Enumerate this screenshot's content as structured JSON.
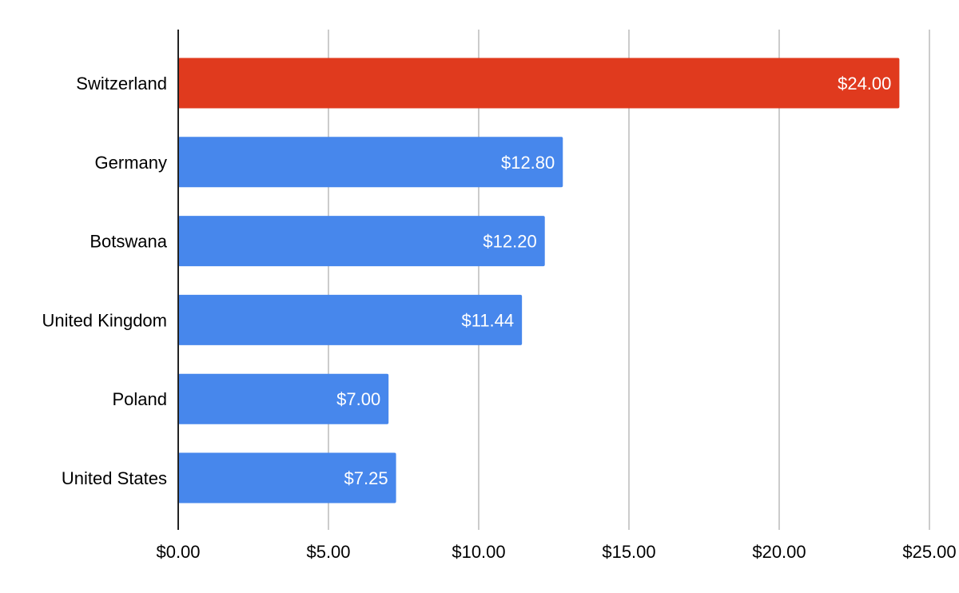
{
  "chart_data": {
    "type": "bar",
    "orientation": "horizontal",
    "title": "",
    "xlabel": "",
    "ylabel": "",
    "categories": [
      "Switzerland",
      "Germany",
      "Botswana",
      "United Kingdom",
      "Poland",
      "United States"
    ],
    "values": [
      24.0,
      12.8,
      12.2,
      11.44,
      7.0,
      7.25
    ],
    "data_labels": [
      "$24.00",
      "$12.80",
      "$12.20",
      "$11.44",
      "$7.00",
      "$7.25"
    ],
    "bar_colors": [
      "#e03a1e",
      "#4787ec",
      "#4787ec",
      "#4787ec",
      "#4787ec",
      "#4787ec"
    ],
    "xlim": [
      0,
      25
    ],
    "x_ticks": [
      0,
      5,
      10,
      15,
      20,
      25
    ],
    "x_tick_labels": [
      "$0.00",
      "$5.00",
      "$10.00",
      "$15.00",
      "$20.00",
      "$25.00"
    ],
    "grid": true,
    "legend": "none"
  }
}
